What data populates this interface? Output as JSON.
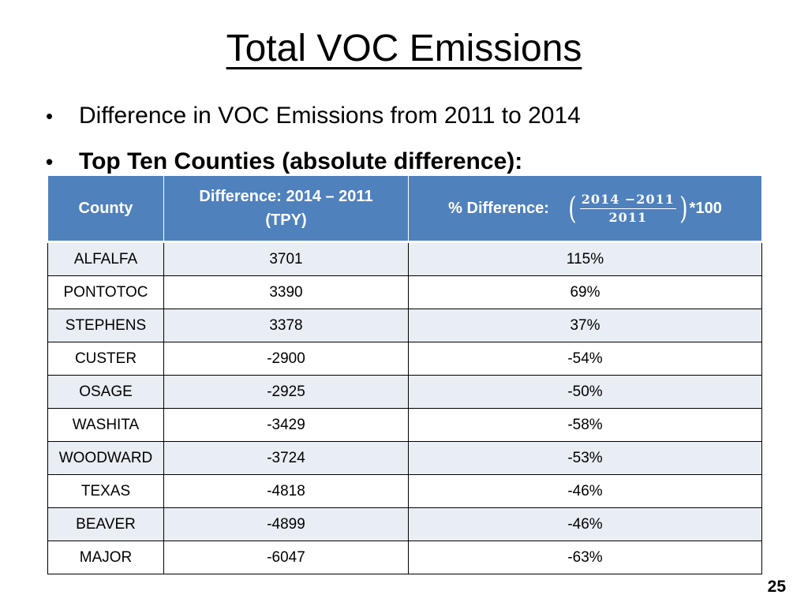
{
  "title": "Total VOC Emissions",
  "bullets": [
    {
      "text": "Difference in VOC Emissions from 2011 to 2014",
      "bold": false
    },
    {
      "text": "Top Ten Counties (absolute difference):",
      "bold": true
    }
  ],
  "bullet_glyph": "•",
  "table": {
    "header": {
      "county": "County",
      "difference_line1": "Difference: 2014 – 2011",
      "difference_line2": "(TPY)",
      "pct_label": "% Difference:",
      "formula_open": "(",
      "formula_numerator": "2014 −2011",
      "formula_denominator": "2011",
      "formula_close": ")",
      "formula_multiplier": "*100"
    },
    "rows": [
      {
        "county": "ALFALFA",
        "difference": "3701",
        "pct": "115%"
      },
      {
        "county": "PONTOTOC",
        "difference": "3390",
        "pct": "69%"
      },
      {
        "county": "STEPHENS",
        "difference": "3378",
        "pct": "37%"
      },
      {
        "county": "CUSTER",
        "difference": "-2900",
        "pct": "-54%"
      },
      {
        "county": "OSAGE",
        "difference": "-2925",
        "pct": "-50%"
      },
      {
        "county": "WASHITA",
        "difference": "-3429",
        "pct": "-58%"
      },
      {
        "county": "WOODWARD",
        "difference": "-3724",
        "pct": "-53%"
      },
      {
        "county": "TEXAS",
        "difference": "-4818",
        "pct": "-46%"
      },
      {
        "county": "BEAVER",
        "difference": "-4899",
        "pct": "-46%"
      },
      {
        "county": "MAJOR",
        "difference": "-6047",
        "pct": "-63%"
      }
    ]
  },
  "page_number": "25",
  "colors": {
    "header_bg": "#4f81bd",
    "row_shade": "#e9edf4"
  }
}
